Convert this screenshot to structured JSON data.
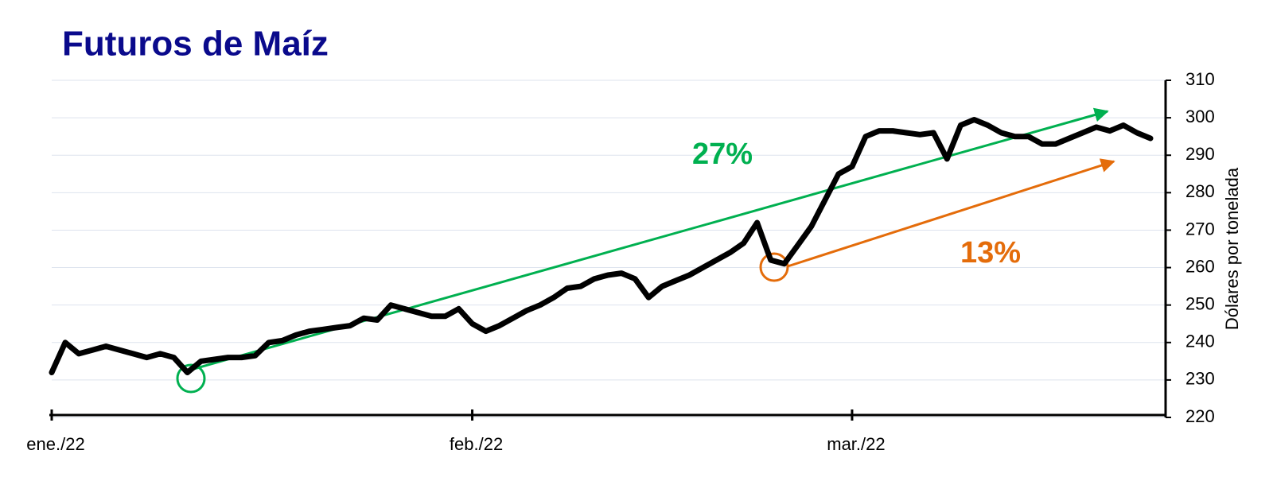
{
  "chart_data": {
    "type": "line",
    "title": "Futuros de Maíz",
    "y_axis_label": "Dólares por tonelada",
    "categories": [
      "ene./22",
      null,
      null,
      null,
      null,
      null,
      null,
      null,
      null,
      null,
      null,
      null,
      null,
      null,
      null,
      null,
      null,
      null,
      null,
      null,
      null,
      null,
      null,
      null,
      null,
      null,
      null,
      null,
      null,
      null,
      null,
      "feb./22",
      null,
      null,
      null,
      null,
      null,
      null,
      null,
      null,
      null,
      null,
      null,
      null,
      null,
      null,
      null,
      null,
      null,
      null,
      null,
      null,
      null,
      null,
      null,
      null,
      null,
      null,
      null,
      "mar./22",
      null,
      null,
      null,
      null,
      null,
      null,
      null,
      null,
      null,
      null,
      null,
      null,
      null,
      null,
      null,
      null,
      null,
      null,
      null,
      null,
      null,
      null
    ],
    "series": [
      {
        "name": "Maíz",
        "color": "#000000",
        "values": [
          232,
          240,
          237,
          238,
          239,
          238,
          237,
          236,
          237,
          236,
          232,
          235,
          235.5,
          236,
          236,
          236.5,
          240,
          240.5,
          242,
          243,
          243.5,
          244,
          244.5,
          246.5,
          246,
          250,
          249,
          248,
          247,
          247,
          249,
          245,
          243,
          244.5,
          246.5,
          248.5,
          250,
          252,
          254.5,
          255,
          257,
          258,
          258.5,
          257,
          252,
          255,
          256.5,
          258,
          260,
          262,
          264,
          266.5,
          272,
          262,
          261,
          266,
          271,
          278,
          285,
          287,
          295,
          296.5,
          296.5,
          296,
          295.5,
          296,
          289,
          298,
          299.5,
          298,
          296,
          295,
          295,
          293,
          293,
          294.5,
          296,
          297.5,
          296.5,
          298,
          296,
          294.5
        ]
      }
    ],
    "ylim": [
      220,
      310
    ],
    "yticks": [
      220,
      230,
      240,
      250,
      260,
      270,
      280,
      290,
      300,
      310
    ],
    "grid": true,
    "annotations": [
      {
        "text": "27%",
        "color": "#00b050"
      },
      {
        "text": "13%",
        "color": "#e46c0a"
      }
    ]
  }
}
